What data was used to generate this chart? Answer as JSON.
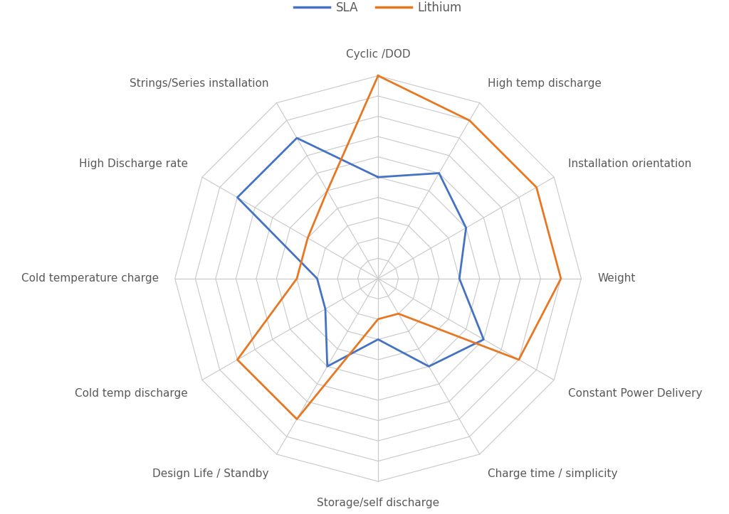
{
  "categories": [
    "Cyclic /DOD",
    "High temp discharge",
    "Installation orientation",
    "Weight",
    "Constant Power Delivery",
    "Charge time / simplicity",
    "Storage/self discharge",
    "Design Life / Standby",
    "Cold temp discharge",
    "Cold temperature charge",
    "High Discharge rate",
    "Strings/Series installation"
  ],
  "sla_values": [
    5,
    6,
    5,
    4,
    6,
    5,
    3,
    5,
    3,
    3,
    8,
    8
  ],
  "lithium_values": [
    10,
    9,
    9,
    9,
    8,
    2,
    2,
    8,
    8,
    4,
    4,
    5
  ],
  "sla_color": "#4472C4",
  "lithium_color": "#E87722",
  "grid_color": "#C8C8C8",
  "spoke_color": "#C8C8C8",
  "background_color": "#FFFFFF",
  "label_color": "#595959",
  "max_value": 10,
  "num_rings": 10,
  "legend_labels": [
    "SLA",
    "Lithium"
  ],
  "label_fontsize": 11,
  "legend_fontsize": 12,
  "line_width": 2.0
}
